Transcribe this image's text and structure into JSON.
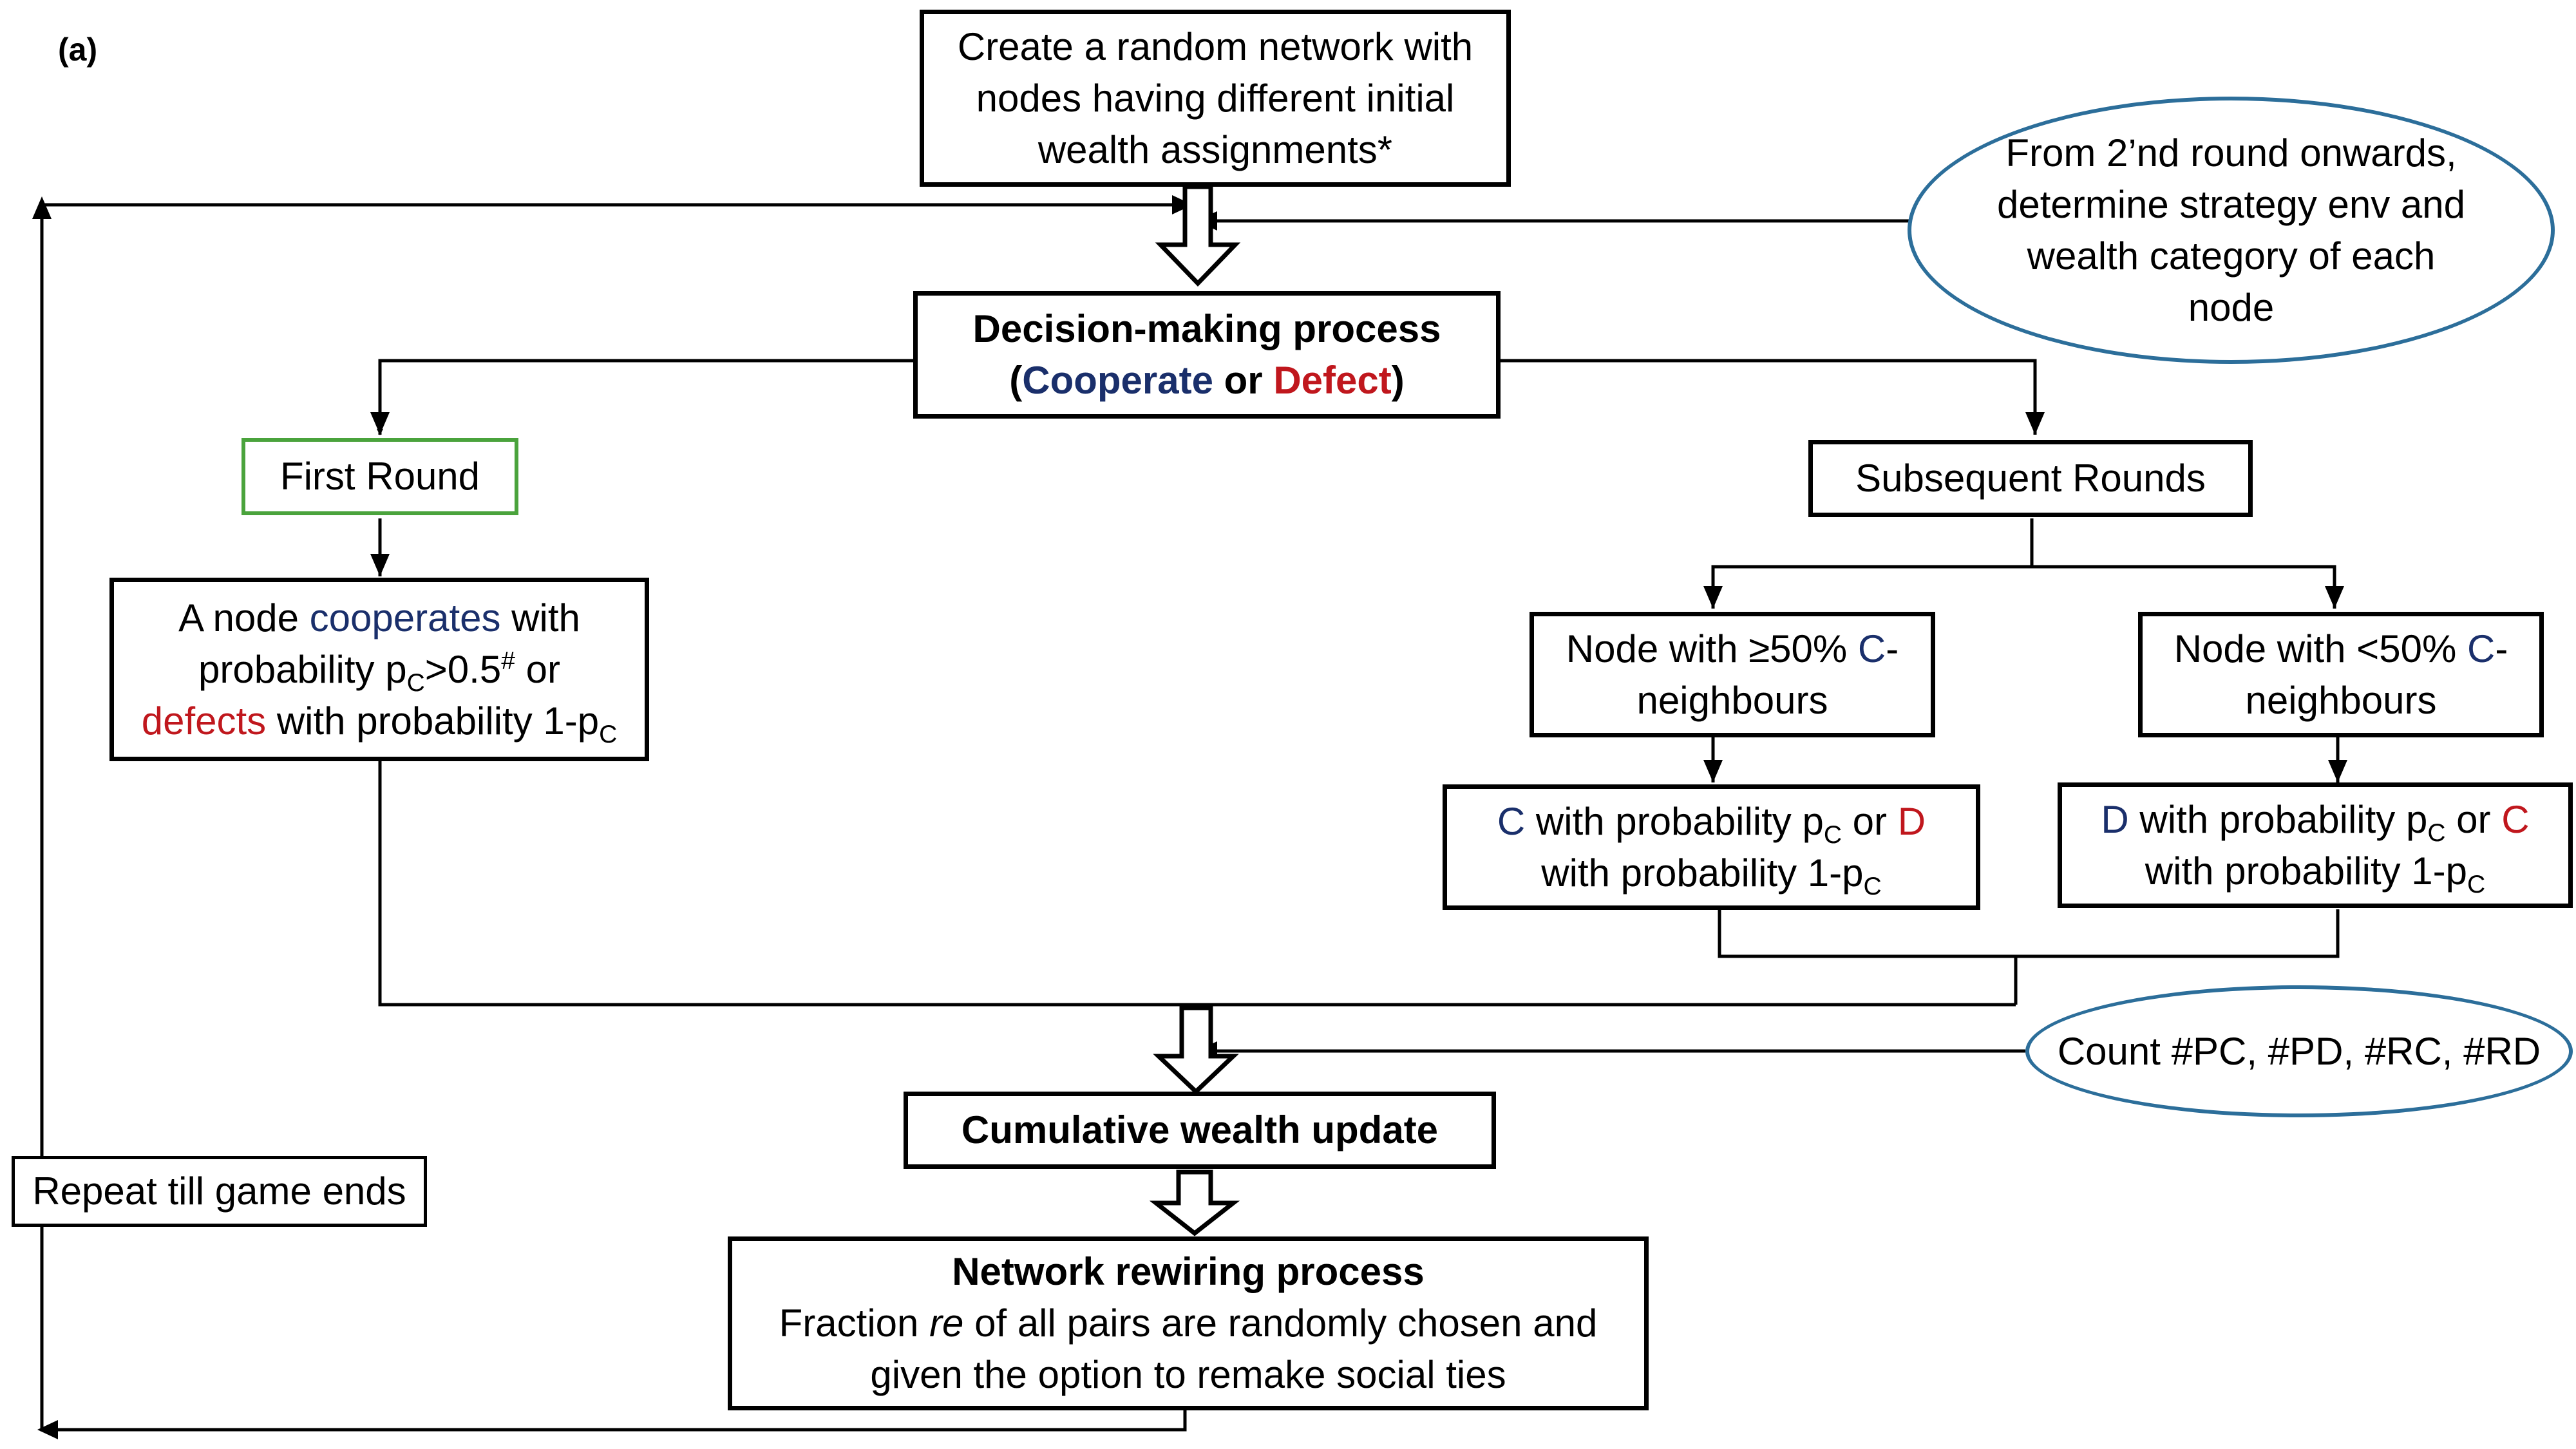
{
  "panel_label": "(a)",
  "box_create": {
    "lines": [
      "Create a random network with",
      "nodes having different initial",
      "wealth assignments*"
    ]
  },
  "ellipse_round2": {
    "lines": [
      "From 2’nd round onwards,",
      "determine strategy env and",
      "wealth category of each",
      "node"
    ]
  },
  "box_decision": {
    "title": "Decision-making process",
    "open": "(",
    "cooperate": "Cooperate",
    "or": " or ",
    "defect": "Defect",
    "close": ")"
  },
  "box_first_round": {
    "label": "First Round"
  },
  "box_subsequent": {
    "label": "Subsequent Rounds"
  },
  "box_first_rule": {
    "l1_pre": "A node ",
    "l1_coop": "cooperates",
    "l1_post": " with",
    "l2_a": "probability p",
    "l2_sub": "C",
    "l2_b": ">0.5",
    "l2_sup": "#",
    "l2_c": " or",
    "l3_def": "defects",
    "l3_a": " with probability 1-p",
    "l3_sub": "C"
  },
  "box_ge50": {
    "l1_a": "Node with ≥50% ",
    "l1_c": "C",
    "l1_b": "-",
    "l2": "neighbours"
  },
  "box_lt50": {
    "l1_a": "Node with <50% ",
    "l1_c": "C",
    "l1_b": "-",
    "l2": "neighbours"
  },
  "box_ge50_rule": {
    "l1_c": "C",
    "l1_a": " with probability p",
    "l1_sub": "C",
    "l1_b": " or ",
    "l1_d": "D",
    "l2_a": "with probability 1-p",
    "l2_sub": "C"
  },
  "box_lt50_rule": {
    "l1_d": "D",
    "l1_a": " with probability p",
    "l1_sub": "C",
    "l1_b": " or ",
    "l1_c": "C",
    "l2_a": "with probability 1-p",
    "l2_sub": "C"
  },
  "ellipse_count": {
    "label": "Count #PC, #PD, #RC, #RD"
  },
  "box_wealth": {
    "label": "Cumulative wealth update"
  },
  "box_repeat": {
    "label": "Repeat till game ends"
  },
  "box_rewire": {
    "title": "Network rewiring process",
    "l2_a": "Fraction ",
    "l2_re": "re",
    "l2_b": " of all pairs are randomly chosen and",
    "l3": "given the option to remake social ties"
  },
  "colors": {
    "cooperate": "#1a2f6b",
    "defect": "#c0171d",
    "ellipse_border": "#2c6e9a",
    "first_round_border": "#4aa33c"
  }
}
